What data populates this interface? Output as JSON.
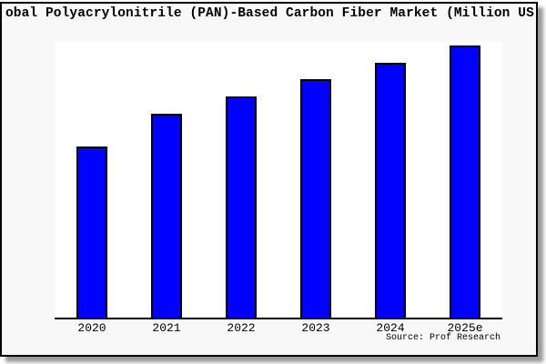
{
  "window": {
    "page_background": "#ffffff",
    "frame_background": "#f8f8f8",
    "frame_border_color": "#000000",
    "plot_background": "#ffffff"
  },
  "title": "obal Polyacrylonitrile (PAN)-Based Carbon Fiber Market (Million US",
  "source": "Source: Prof Research",
  "chart_data": {
    "type": "bar",
    "title": "obal Polyacrylonitrile (PAN)-Based Carbon Fiber Market (Million US",
    "categories": [
      "2020",
      "2021",
      "2022",
      "2023",
      "2024",
      "2025e"
    ],
    "values": [
      62.8,
      74.9,
      81.4,
      87.7,
      93.7,
      100
    ],
    "value_note": "no y-axis or data labels visible; values estimated from bar heights, scaled so 2025e = 100",
    "xlabel": "",
    "ylabel": "",
    "ylim": [
      0,
      101.3
    ],
    "grid": false,
    "legend": false,
    "y_axis_labels_visible": false,
    "bar_color": "#0000ff",
    "bar_edge_color": "#000000",
    "axis_line_color": "#000000"
  }
}
